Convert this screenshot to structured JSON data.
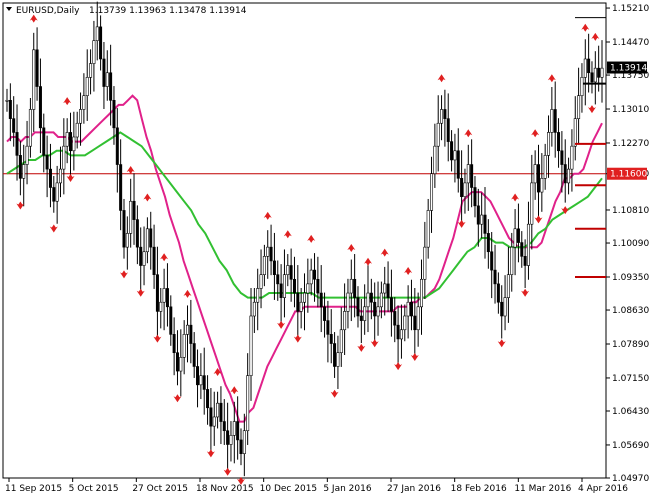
{
  "header": {
    "symbol": "EURUSD,Daily",
    "ohlc": "1.13739 1.13963 1.13478 1.13914"
  },
  "price_badge": "1.13914",
  "level_badge": "1.11600",
  "chart_data": {
    "type": "candlestick",
    "symbol": "EURUSD",
    "timeframe": "Daily",
    "ylim": [
      1.0497,
      1.1532
    ],
    "y_ticks": [
      "1.15210",
      "1.14470",
      "1.13750",
      "1.13010",
      "1.12270",
      "1.11600",
      "1.10810",
      "1.10090",
      "1.09350",
      "1.08630",
      "1.07890",
      "1.07150",
      "1.06430",
      "1.05690",
      "1.04970"
    ],
    "x_ticks": [
      "11 Sep 2015",
      "5 Oct 2015",
      "27 Oct 2015",
      "18 Nov 2015",
      "10 Dec 2015",
      "5 Jan 2016",
      "27 Jan 2016",
      "18 Feb 2016",
      "11 Mar 2016",
      "4 Apr 2016"
    ],
    "current_price": 1.13914,
    "horizontal_level": 1.116,
    "series": [
      {
        "name": "close",
        "color": "#000000",
        "values": [
          1.132,
          1.128,
          1.125,
          1.12,
          1.115,
          1.118,
          1.122,
          1.13,
          1.143,
          1.135,
          1.126,
          1.12,
          1.117,
          1.113,
          1.11,
          1.114,
          1.117,
          1.122,
          1.125,
          1.121,
          1.124,
          1.127,
          1.13,
          1.133,
          1.137,
          1.14,
          1.145,
          1.148,
          1.141,
          1.135,
          1.138,
          1.132,
          1.126,
          1.118,
          1.108,
          1.1,
          1.103,
          1.11,
          1.106,
          1.1,
          1.096,
          1.099,
          1.104,
          1.1,
          1.094,
          1.086,
          1.088,
          1.091,
          1.087,
          1.081,
          1.077,
          1.073,
          1.076,
          1.081,
          1.083,
          1.079,
          1.074,
          1.07,
          1.072,
          1.069,
          1.065,
          1.061,
          1.063,
          1.066,
          1.062,
          1.06,
          1.057,
          1.059,
          1.062,
          1.058,
          1.055,
          1.06,
          1.072,
          1.085,
          1.088,
          1.091,
          1.094,
          1.098,
          1.1,
          1.097,
          1.094,
          1.092,
          1.089,
          1.094,
          1.096,
          1.093,
          1.09,
          1.086,
          1.088,
          1.09,
          1.092,
          1.095,
          1.093,
          1.09,
          1.087,
          1.084,
          1.081,
          1.079,
          1.074,
          1.077,
          1.082,
          1.086,
          1.09,
          1.093,
          1.089,
          1.085,
          1.084,
          1.087,
          1.09,
          1.088,
          1.085,
          1.087,
          1.09,
          1.092,
          1.089,
          1.086,
          1.083,
          1.08,
          1.082,
          1.085,
          1.088,
          1.085,
          1.082,
          1.087,
          1.093,
          1.1,
          1.108,
          1.116,
          1.122,
          1.127,
          1.13,
          1.128,
          1.123,
          1.119,
          1.121,
          1.115,
          1.111,
          1.114,
          1.118,
          1.113,
          1.109,
          1.105,
          1.107,
          1.103,
          1.099,
          1.095,
          1.092,
          1.088,
          1.085,
          1.089,
          1.094,
          1.1,
          1.104,
          1.101,
          1.098,
          1.096,
          1.105,
          1.114,
          1.118,
          1.112,
          1.115,
          1.12,
          1.125,
          1.13,
          1.125,
          1.121,
          1.118,
          1.114,
          1.117,
          1.122,
          1.128,
          1.133,
          1.137,
          1.141,
          1.138,
          1.136,
          1.139,
          1.137,
          1.139
        ]
      },
      {
        "name": "MA fast",
        "color": "#e0218a",
        "values": [
          1.123,
          1.124,
          1.124,
          1.123,
          1.124,
          1.124,
          1.125,
          1.125,
          1.125,
          1.125,
          1.125,
          1.124,
          1.124,
          1.124,
          1.123,
          1.123,
          1.123,
          1.124,
          1.125,
          1.126,
          1.127,
          1.128,
          1.129,
          1.13,
          1.131,
          1.131,
          1.132,
          1.133,
          1.132,
          1.128,
          1.124,
          1.121,
          1.117,
          1.114,
          1.111,
          1.107,
          1.104,
          1.101,
          1.097,
          1.094,
          1.091,
          1.088,
          1.085,
          1.082,
          1.079,
          1.076,
          1.073,
          1.07,
          1.068,
          1.065,
          1.062,
          1.062,
          1.064,
          1.065,
          1.068,
          1.071,
          1.074,
          1.076,
          1.078,
          1.08,
          1.082,
          1.084,
          1.086,
          1.086,
          1.087,
          1.087,
          1.087,
          1.087,
          1.087,
          1.087,
          1.087,
          1.087,
          1.087,
          1.087,
          1.087,
          1.087,
          1.086,
          1.086,
          1.086,
          1.086,
          1.086,
          1.086,
          1.086,
          1.086,
          1.087,
          1.087,
          1.087,
          1.088,
          1.088,
          1.089,
          1.089,
          1.09,
          1.091,
          1.093,
          1.096,
          1.099,
          1.102,
          1.106,
          1.11,
          1.111,
          1.112,
          1.112,
          1.112,
          1.111,
          1.11,
          1.108,
          1.106,
          1.104,
          1.102,
          1.101,
          1.1,
          1.1,
          1.1,
          1.1,
          1.1,
          1.101,
          1.104,
          1.107,
          1.11,
          1.112,
          1.115,
          1.115,
          1.116,
          1.116,
          1.117,
          1.12,
          1.123,
          1.125,
          1.127
        ]
      },
      {
        "name": "MA slow",
        "color": "#32c032",
        "values": [
          1.116,
          1.117,
          1.118,
          1.119,
          1.119,
          1.12,
          1.12,
          1.121,
          1.121,
          1.12,
          1.12,
          1.12,
          1.121,
          1.122,
          1.123,
          1.124,
          1.125,
          1.124,
          1.123,
          1.122,
          1.12,
          1.118,
          1.116,
          1.114,
          1.112,
          1.11,
          1.108,
          1.105,
          1.103,
          1.1,
          1.097,
          1.095,
          1.092,
          1.09,
          1.089,
          1.089,
          1.089,
          1.09,
          1.09,
          1.09,
          1.09,
          1.09,
          1.09,
          1.09,
          1.089,
          1.089,
          1.089,
          1.089,
          1.089,
          1.089,
          1.089,
          1.089,
          1.089,
          1.089,
          1.089,
          1.089,
          1.089,
          1.089,
          1.089,
          1.089,
          1.09,
          1.091,
          1.093,
          1.095,
          1.097,
          1.099,
          1.1,
          1.102,
          1.102,
          1.101,
          1.101,
          1.1,
          1.1,
          1.1,
          1.101,
          1.103,
          1.104,
          1.106,
          1.107,
          1.108,
          1.109,
          1.11,
          1.111,
          1.113,
          1.115
        ]
      }
    ],
    "right_markers": [
      1.15,
      1.1225,
      1.1135,
      1.104,
      1.0935
    ]
  }
}
